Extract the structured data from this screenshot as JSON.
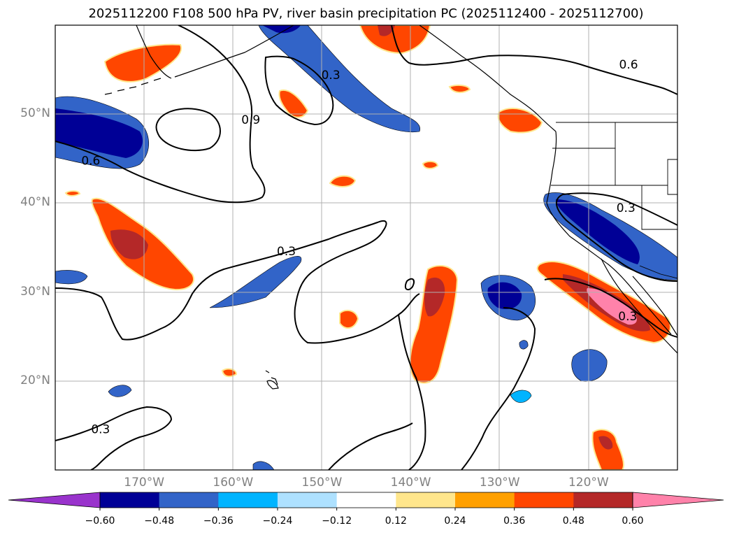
{
  "title": "2025112200 F108 500 hPa PV, river basin precipitation PC (2025112400 - 2025112700)",
  "map": {
    "lon_range": [
      -180,
      -110
    ],
    "lat_range": [
      10,
      60
    ],
    "lat_ticks": [
      {
        "value": 50,
        "label": "50°N"
      },
      {
        "value": 40,
        "label": "40°N"
      },
      {
        "value": 30,
        "label": "30°N"
      },
      {
        "value": 20,
        "label": "20°N"
      }
    ],
    "lon_ticks": [
      {
        "value": -170,
        "label": "170°W"
      },
      {
        "value": -160,
        "label": "160°W"
      },
      {
        "value": -150,
        "label": "150°W"
      },
      {
        "value": -140,
        "label": "140°W"
      },
      {
        "value": -130,
        "label": "130°W"
      },
      {
        "value": -120,
        "label": "120°W"
      }
    ],
    "contour_labels": [
      {
        "text": "0.9",
        "lon": -158,
        "lat": 49.4
      },
      {
        "text": "0.6",
        "lon": -176,
        "lat": 44.8
      },
      {
        "text": "0.3",
        "lon": -149,
        "lat": 54.4
      },
      {
        "text": "0.6",
        "lon": -115.5,
        "lat": 55.6
      },
      {
        "text": "0.3",
        "lon": -154,
        "lat": 34.6
      },
      {
        "text": "0.3",
        "lon": -115.8,
        "lat": 39.5
      },
      {
        "text": "0.3",
        "lon": -115.6,
        "lat": 27.3
      },
      {
        "text": "0.3",
        "lon": -174.9,
        "lat": 14.6
      }
    ]
  },
  "colorbar": {
    "colors": [
      "#9933cc",
      "#000096",
      "#3264c8",
      "#00b4ff",
      "#aee1ff",
      "#ffffff",
      "#ffe68c",
      "#ffa000",
      "#ff4600",
      "#b42828",
      "#ff82aa"
    ],
    "tick_labels": [
      "−0.60",
      "−0.48",
      "−0.36",
      "−0.24",
      "−0.12",
      "0.12",
      "0.24",
      "0.36",
      "0.48",
      "0.60"
    ]
  }
}
